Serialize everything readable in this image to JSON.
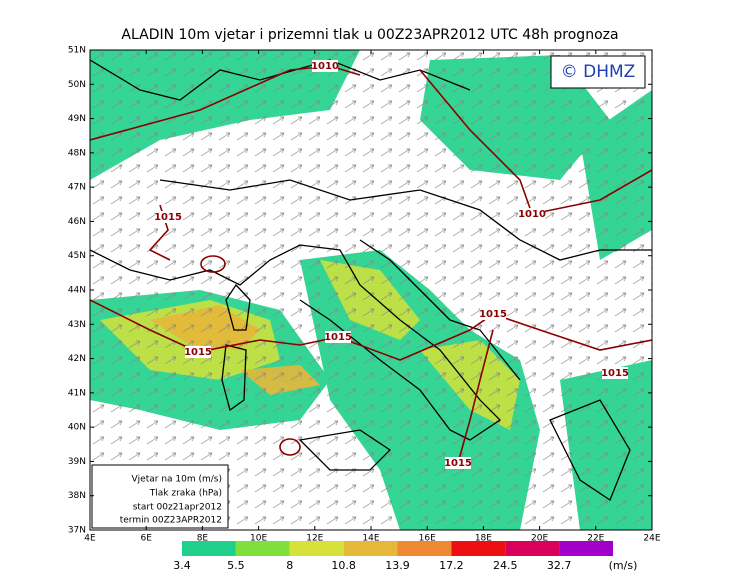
{
  "title": "ALADIN 10m vjetar i prizemni tlak u 00Z23APR2012 UTC 48h prognoza",
  "copyright": "© DHMZ",
  "latitudes": [
    "51N",
    "50N",
    "49N",
    "48N",
    "47N",
    "46N",
    "45N",
    "44N",
    "43N",
    "42N",
    "41N",
    "40N",
    "39N",
    "38N",
    "37N"
  ],
  "longitudes": [
    "4E",
    "6E",
    "8E",
    "10E",
    "12E",
    "14E",
    "16E",
    "18E",
    "20E",
    "22E",
    "24E"
  ],
  "isobar_labels": [
    "1010",
    "1015",
    "1015",
    "1015",
    "1015",
    "1010",
    "1015",
    "1015"
  ],
  "info_box": [
    "Vjetar na 10m (m/s)",
    "Tlak zraka (hPa)",
    "start 00z21apr2012",
    "termin 00Z23APR2012"
  ],
  "colorbar": {
    "unit": "(m/s)",
    "bins": [
      {
        "label": "3.4",
        "color": "#1fd08a"
      },
      {
        "label": "5.5",
        "color": "#7fe03c"
      },
      {
        "label": "8",
        "color": "#d6e23a"
      },
      {
        "label": "10.8",
        "color": "#e6b83a"
      },
      {
        "label": "13.9",
        "color": "#f08a32"
      },
      {
        "label": "17.2",
        "color": "#ee1010"
      },
      {
        "label": "24.5",
        "color": "#d8005a"
      },
      {
        "label": "32.7",
        "color": "#a000c8"
      }
    ]
  }
}
